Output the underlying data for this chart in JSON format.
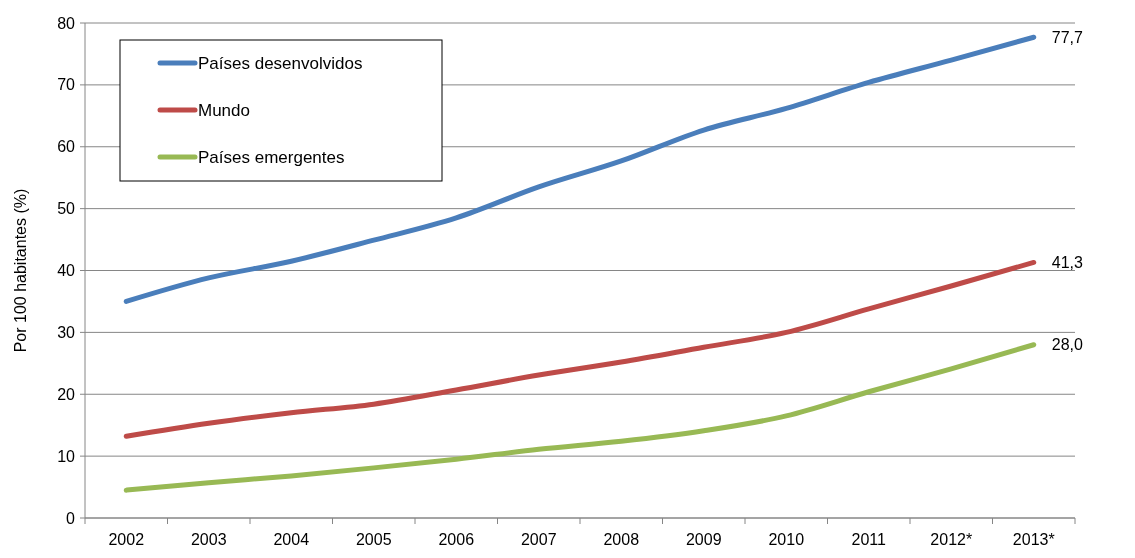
{
  "chart_data": {
    "type": "line",
    "ylabel": "Por 100 habitantes (%)",
    "categories": [
      "2002",
      "2003",
      "2004",
      "2005",
      "2006",
      "2007",
      "2008",
      "2009",
      "2010",
      "2011",
      "2012*",
      "2013*"
    ],
    "series": [
      {
        "name": "Países desenvolvidos",
        "color": "#4a7ebb",
        "values": [
          35.0,
          38.8,
          41.5,
          44.9,
          48.5,
          53.5,
          57.7,
          62.7,
          66.2,
          70.4,
          74.0,
          77.7
        ],
        "value_labels": [
          null,
          null,
          null,
          null,
          null,
          null,
          null,
          null,
          null,
          null,
          null,
          "77,7"
        ]
      },
      {
        "name": "Mundo",
        "color": "#be4b48",
        "values": [
          13.2,
          15.3,
          17.0,
          18.4,
          20.7,
          23.1,
          25.2,
          27.6,
          30.0,
          33.8,
          37.5,
          41.3
        ],
        "value_labels": [
          null,
          null,
          null,
          null,
          null,
          null,
          null,
          null,
          null,
          null,
          null,
          "41,3"
        ]
      },
      {
        "name": "Países emergentes",
        "color": "#98b954",
        "values": [
          4.5,
          5.7,
          6.8,
          8.1,
          9.5,
          11.1,
          12.4,
          14.1,
          16.5,
          20.4,
          24.1,
          28.0
        ],
        "value_labels": [
          null,
          null,
          null,
          null,
          null,
          null,
          null,
          null,
          null,
          null,
          null,
          "28,0"
        ]
      }
    ],
    "ylim": [
      0,
      80
    ],
    "yticks": [
      0,
      10,
      20,
      30,
      40,
      50,
      60,
      70,
      80
    ],
    "grid": "y",
    "legend": "top left",
    "marker": "none",
    "line_style": "solid"
  }
}
